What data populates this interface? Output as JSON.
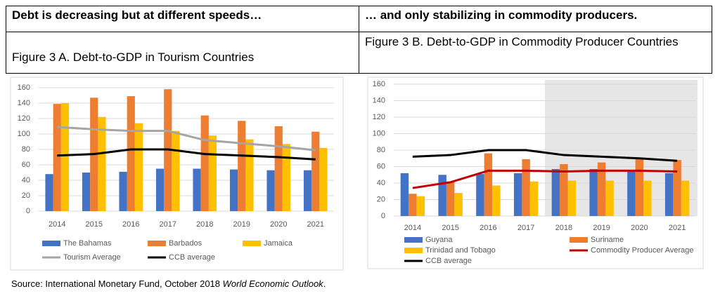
{
  "header": {
    "left_title": "Debt is decreasing but at different speeds…",
    "right_title": "… and only stabilizing in commodity producers.",
    "left_caption": "Figure 3 A. Debt-to-GDP in Tourism Countries",
    "right_caption": "Figure 3 B. Debt-to-GDP in Commodity Producer Countries"
  },
  "source": {
    "prefix": "Source: International Monetary Fund, October 2018 ",
    "publication": "World Economic Outlook",
    "suffix": "."
  },
  "chart_data": [
    {
      "type": "bar",
      "categories": [
        "2014",
        "2015",
        "2016",
        "2017",
        "2018",
        "2019",
        "2020",
        "2021"
      ],
      "ylim": [
        0,
        160
      ],
      "yticks": [
        0,
        20,
        40,
        60,
        80,
        100,
        120,
        140,
        160
      ],
      "grid": true,
      "series": [
        {
          "name": "The Bahamas",
          "color": "#4472c4",
          "values": [
            48,
            50,
            51,
            55,
            55,
            54,
            53,
            53
          ]
        },
        {
          "name": "Barbados",
          "color": "#ed7d31",
          "values": [
            139,
            147,
            149,
            158,
            124,
            117,
            110,
            103
          ]
        },
        {
          "name": "Jamaica",
          "color": "#ffc000",
          "values": [
            140,
            122,
            114,
            104,
            98,
            93,
            87,
            82
          ]
        },
        {
          "name": "Tourism Average",
          "color": "#a5a5a5",
          "type": "line",
          "values": [
            109,
            106,
            104,
            104,
            92,
            88,
            84,
            79
          ]
        },
        {
          "name": "CCB average",
          "color": "#000000",
          "type": "line",
          "values": [
            72,
            74,
            80,
            80,
            74,
            72,
            70,
            67
          ]
        }
      ]
    },
    {
      "type": "bar",
      "categories": [
        "2014",
        "2015",
        "2016",
        "2017",
        "2018",
        "2019",
        "2020",
        "2021"
      ],
      "ylim": [
        0,
        160
      ],
      "yticks": [
        0,
        20,
        40,
        60,
        80,
        100,
        120,
        140,
        160
      ],
      "grid": true,
      "shade_from": "2018",
      "series": [
        {
          "name": "Guyana",
          "color": "#4472c4",
          "values": [
            52,
            50,
            51,
            52,
            57,
            57,
            56,
            52
          ]
        },
        {
          "name": "Suriname",
          "color": "#ed7d31",
          "values": [
            27,
            42,
            76,
            69,
            63,
            65,
            69,
            68
          ]
        },
        {
          "name": "Trinidad and Tobago",
          "color": "#ffc000",
          "values": [
            24,
            28,
            37,
            42,
            43,
            43,
            43,
            43
          ]
        },
        {
          "name": "Commodity Producer Average",
          "color": "#c00000",
          "type": "line",
          "values": [
            34,
            41,
            55,
            55,
            54,
            55,
            55,
            54
          ]
        },
        {
          "name": "CCB average",
          "color": "#000000",
          "type": "line",
          "values": [
            72,
            74,
            80,
            80,
            74,
            72,
            70,
            67
          ]
        }
      ]
    }
  ]
}
